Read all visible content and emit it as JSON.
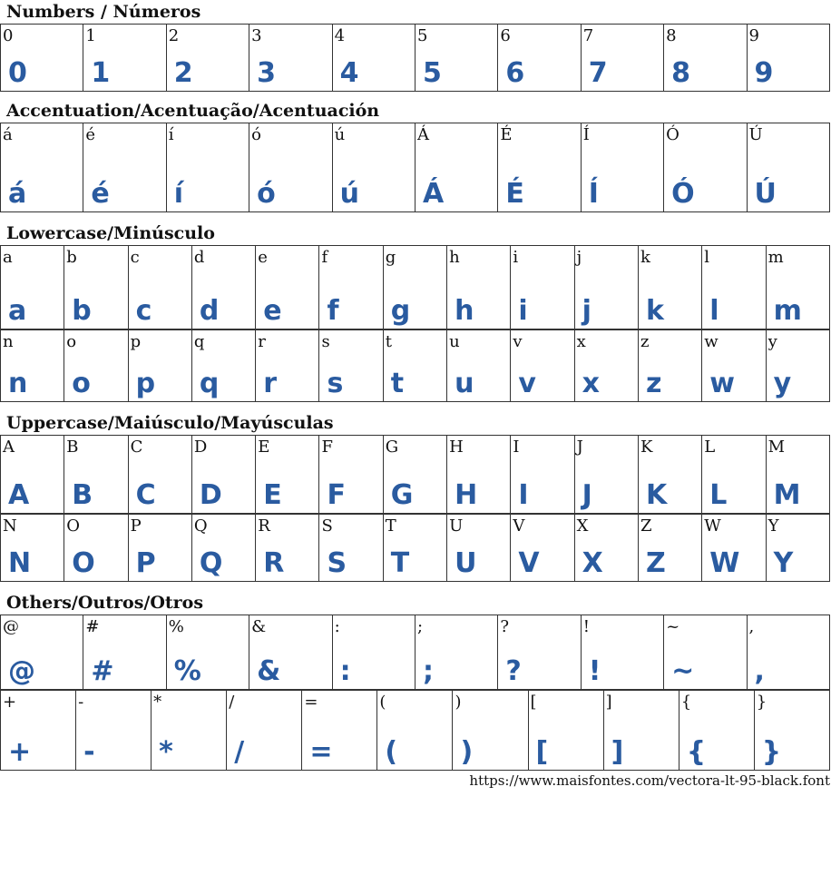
{
  "glyph_color": "#2a5ba0",
  "sections": [
    {
      "title": "Numbers / Números",
      "rows": [
        [
          "0",
          "1",
          "2",
          "3",
          "4",
          "5",
          "6",
          "7",
          "8",
          "9"
        ]
      ]
    },
    {
      "title": "Accentuation/Acentuação/Acentuación",
      "rows": [
        [
          "á",
          "é",
          "í",
          "ó",
          "ú",
          "Á",
          "É",
          "Í",
          "Ó",
          "Ú"
        ]
      ]
    },
    {
      "title": "Lowercase/Minúsculo",
      "rows": [
        [
          "a",
          "b",
          "c",
          "d",
          "e",
          "f",
          "g",
          "h",
          "i",
          "j",
          "k",
          "l",
          "m"
        ],
        [
          "n",
          "o",
          "p",
          "q",
          "r",
          "s",
          "t",
          "u",
          "v",
          "x",
          "z",
          "w",
          "y"
        ]
      ]
    },
    {
      "title": "Uppercase/Maiúsculo/Mayúsculas",
      "rows": [
        [
          "A",
          "B",
          "C",
          "D",
          "E",
          "F",
          "G",
          "H",
          "I",
          "J",
          "K",
          "L",
          "M"
        ],
        [
          "N",
          "O",
          "P",
          "Q",
          "R",
          "S",
          "T",
          "U",
          "V",
          "X",
          "Z",
          "W",
          "Y"
        ]
      ]
    },
    {
      "title": "Others/Outros/Otros",
      "rows": [
        [
          "@",
          "#",
          "%",
          "&",
          ":",
          ";",
          "?",
          "!",
          "~",
          ","
        ],
        [
          "+",
          "-",
          "*",
          "/",
          "=",
          "(",
          ")",
          "[",
          "]",
          "{",
          "}"
        ]
      ]
    }
  ],
  "footer": "https://www.maisfontes.com/vectora-lt-95-black.font"
}
